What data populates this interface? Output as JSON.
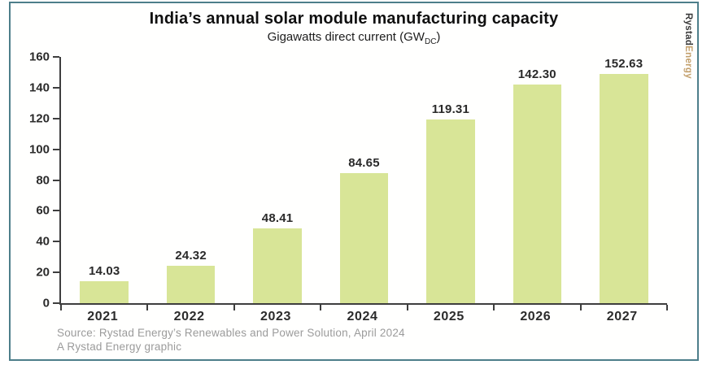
{
  "frame": {
    "border_color": "#4d7e8a"
  },
  "header": {
    "title": "India’s annual solar module manufacturing capacity",
    "subtitle_pre": "Gigawatts direct current (GW",
    "subtitle_sub": "DC",
    "subtitle_post": ")"
  },
  "brand": {
    "part1": "Rystad",
    "part2": "Energy",
    "part1_color": "#3a3a3a",
    "part2_color": "#c3a06c"
  },
  "chart_data": {
    "type": "bar",
    "title": "India’s annual solar module manufacturing capacity",
    "subtitle": "Gigawatts direct current (GW_DC)",
    "categories": [
      "2021",
      "2022",
      "2023",
      "2024",
      "2025",
      "2026",
      "2027"
    ],
    "values": [
      14.03,
      24.32,
      48.41,
      84.65,
      119.31,
      142.3,
      152.63
    ],
    "value_labels": [
      "14.03",
      "24.32",
      "48.41",
      "84.65",
      "119.31",
      "142.30",
      "152.63"
    ],
    "xlabel": "",
    "ylabel": "",
    "ylim": [
      0,
      160
    ],
    "yticks": [
      0,
      20,
      40,
      60,
      80,
      100,
      120,
      140,
      160
    ],
    "bar_color": "#d8e597",
    "axis_color": "#3e3e3e",
    "grid": false,
    "legend": false
  },
  "footer": {
    "source_line1": "Source: Rystad Energy’s Renewables and Power Solution, April 2024",
    "source_line2": "A Rystad Energy graphic"
  }
}
